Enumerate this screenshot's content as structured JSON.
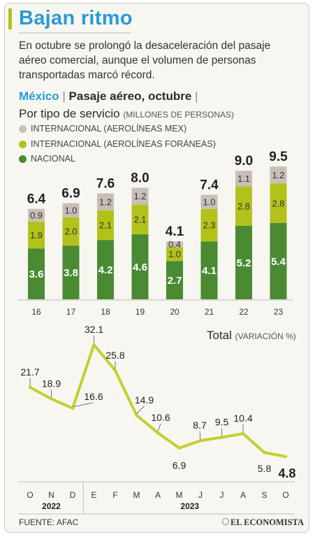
{
  "title": "Bajan ritmo",
  "subtitle_lines": [
    "En octubre se prolongó la desaceleración del pasaje",
    "aéreo comercial, aunque el volumen de personas",
    "transportadas marcó récord."
  ],
  "bar_chart": {
    "header_country": "México",
    "header_title": "Pasaje aéreo, octubre",
    "header_sep": "|",
    "subtitle": "Por tipo de servicio",
    "unit": "(MILLONES DE PERSONAS)"
  },
  "line_chart": {
    "title": "Total",
    "unit": "(VARIACIÓN %)"
  },
  "footer": {
    "source": "FUENTE: AFAC",
    "brand": "EL ECONOMISTA"
  },
  "colors": {
    "title": "#2a9ad6",
    "nacional": "#4a8a32",
    "foraneas": "#b3c21a",
    "mex": "#c8c0b8",
    "line": "#c4cf2e"
  },
  "chart_data": [
    {
      "type": "bar",
      "stacked": true,
      "categories": [
        "16",
        "17",
        "18",
        "19",
        "20",
        "21",
        "22",
        "23"
      ],
      "series": [
        {
          "name": "NACIONAL",
          "values": [
            3.6,
            3.8,
            4.2,
            4.6,
            2.7,
            4.1,
            5.2,
            5.4
          ]
        },
        {
          "name": "INTERNACIONAL (AEROLÍNEAS FORÁNEAS)",
          "values": [
            1.9,
            2.0,
            2.1,
            2.1,
            1.0,
            2.3,
            2.8,
            2.8
          ]
        },
        {
          "name": "INTERNACIONAL (AEROLÍNEAS MEX)",
          "values": [
            0.9,
            1.0,
            1.2,
            1.2,
            0.4,
            1.0,
            1.1,
            1.2
          ]
        }
      ],
      "totals": [
        "6.4",
        "6.9",
        "7.6",
        "8.0",
        "4.1",
        "7.4",
        "9.0",
        "9.5"
      ],
      "ylim": [
        0,
        9.5
      ],
      "legend_position": "top-left"
    },
    {
      "type": "line",
      "x": [
        "O",
        "N",
        "D",
        "E",
        "F",
        "M",
        "A",
        "M",
        "J",
        "J",
        "A",
        "S",
        "O"
      ],
      "years": [
        {
          "label": "2022",
          "months": 3
        },
        {
          "label": "2023",
          "months": 10
        }
      ],
      "values": [
        21.7,
        18.9,
        16.6,
        32.1,
        25.8,
        14.9,
        10.6,
        6.9,
        8.7,
        9.5,
        10.4,
        5.8,
        4.8
      ],
      "value_labels": [
        "21.7",
        "18.9",
        "16.6",
        "32.1",
        "25.8",
        "14.9",
        "10.6",
        "6.9",
        "8.7",
        "9.5",
        "10.4",
        "5.8",
        "4.8"
      ],
      "ylim": [
        0,
        35
      ]
    }
  ]
}
